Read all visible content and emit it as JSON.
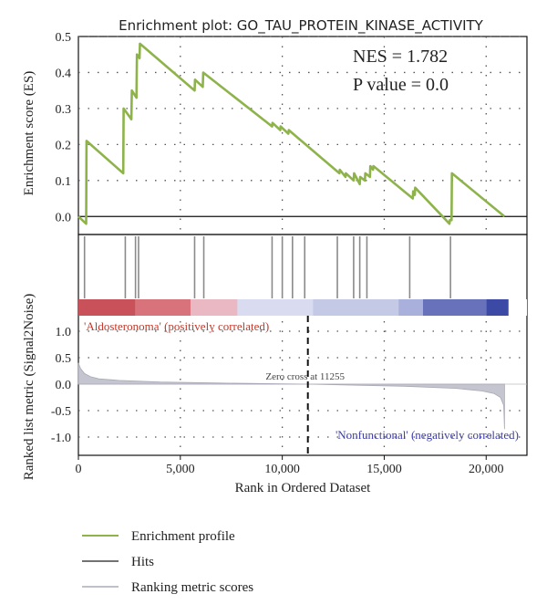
{
  "chart_data": {
    "type": "line",
    "title": "Enrichment plot: GO_TAU_PROTEIN_KINASE_ACTIVITY",
    "xlabel": "Rank in Ordered Dataset",
    "xlim": [
      0,
      22000
    ],
    "x_ticks": [
      0,
      5000,
      10000,
      15000,
      20000
    ],
    "x_tick_labels": [
      "0",
      "5,000",
      "10,000",
      "15,000",
      "20,000"
    ],
    "grid": true,
    "es_panel": {
      "ylabel": "Enrichment score (ES)",
      "ylim": [
        -0.05,
        0.5
      ],
      "y_ticks": [
        0.0,
        0.1,
        0.2,
        0.3,
        0.4,
        0.5
      ],
      "y_tick_labels": [
        "0.0",
        "0.1",
        "0.2",
        "0.3",
        "0.4",
        "0.5"
      ],
      "annotations": [
        "NES = 1.782",
        "P value = 0.0"
      ],
      "series": [
        {
          "name": "Enrichment profile",
          "color": "#8db34a",
          "x": [
            0,
            380,
            400,
            2200,
            2220,
            2600,
            2620,
            2850,
            2870,
            3000,
            3020,
            5700,
            5720,
            6100,
            6120,
            9500,
            9520,
            9900,
            9920,
            10300,
            10320,
            12800,
            12820,
            13100,
            13120,
            13500,
            13520,
            13800,
            13820,
            14050,
            14070,
            14300,
            14320,
            14450,
            14470,
            16400,
            16420,
            16500,
            16520,
            18200,
            18220,
            18300,
            18320,
            20900
          ],
          "values": [
            0.0,
            -0.02,
            0.21,
            0.12,
            0.3,
            0.27,
            0.35,
            0.33,
            0.45,
            0.44,
            0.48,
            0.35,
            0.38,
            0.36,
            0.4,
            0.25,
            0.26,
            0.24,
            0.25,
            0.23,
            0.24,
            0.12,
            0.13,
            0.11,
            0.12,
            0.1,
            0.12,
            0.09,
            0.11,
            0.1,
            0.12,
            0.11,
            0.14,
            0.13,
            0.14,
            0.05,
            0.07,
            0.06,
            0.08,
            -0.02,
            -0.01,
            -0.01,
            0.12,
            0.0
          ]
        }
      ]
    },
    "hits": {
      "name": "Hits",
      "color": "#444444",
      "positions": [
        300,
        2300,
        2800,
        2950,
        5700,
        6150,
        9500,
        10000,
        10500,
        11100,
        12700,
        13500,
        13800,
        14150,
        16250,
        18250
      ]
    },
    "rank_panel": {
      "ylabel": "Ranked list metric (Signal2Noise)",
      "ylim": [
        -1.2,
        1.2
      ],
      "y_ticks": [
        -1.0,
        -0.5,
        0.0,
        0.5,
        1.0
      ],
      "y_tick_labels": [
        "-1.0",
        "-0.5",
        "0.0",
        "0.5",
        "1.0"
      ],
      "zero_cross": 11255,
      "zero_cross_label": "Zero cross at 11255",
      "positive_label": "'Aldosteronoma' (positively correlated)",
      "negative_label": "'Nonfunctional' (negatively correlated)",
      "series_name": "Ranking metric scores",
      "x": [
        0,
        100,
        300,
        600,
        1000,
        2000,
        4000,
        7000,
        10000,
        11255,
        13000,
        16000,
        18500,
        19800,
        20400,
        20700,
        20860,
        20900
      ],
      "values": [
        0.4,
        0.3,
        0.2,
        0.14,
        0.1,
        0.07,
        0.04,
        0.02,
        0.005,
        0.0,
        -0.015,
        -0.04,
        -0.08,
        -0.13,
        -0.18,
        -0.25,
        -0.4,
        -0.85
      ]
    },
    "heat_strip": {
      "colors": [
        "#c9525a",
        "#d8727b",
        "#e9b8c2",
        "#d9dcf0",
        "#c4c9e6",
        "#a9b0dc",
        "#6872bb",
        "#3d4aa5",
        "#ffffff"
      ],
      "bounds": [
        0,
        2800,
        5500,
        7800,
        11500,
        15700,
        16900,
        20000,
        21100,
        22000
      ]
    },
    "legend": [
      {
        "label": "Enrichment profile",
        "color": "#8db34a"
      },
      {
        "label": "Hits",
        "color": "#444444"
      },
      {
        "label": "Ranking metric scores",
        "color": "#c0c0c8"
      }
    ]
  }
}
